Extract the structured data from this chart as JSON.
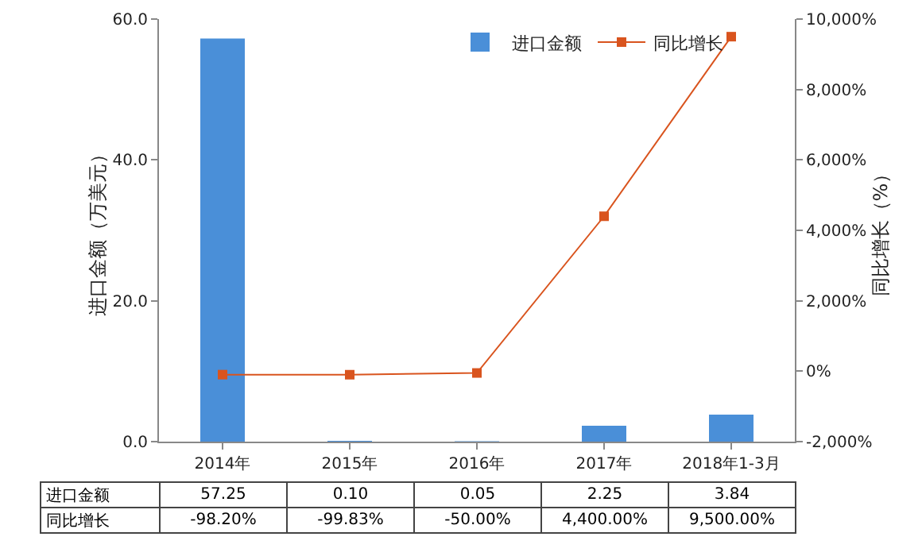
{
  "chart_data": {
    "type": "bar",
    "ylabel": "进口金额（万美元）",
    "y2label": "同比增长（%）",
    "categories": [
      "2014年",
      "2015年",
      "2016年",
      "2017年",
      "2018年1-3月"
    ],
    "series": [
      {
        "name": "进口金额",
        "color": "#4a8fd8",
        "values": [
          57.25,
          0.1,
          0.05,
          2.25,
          3.84
        ],
        "value_labels": [
          "57.25",
          "0.10",
          "0.05",
          "2.25",
          "3.84"
        ]
      },
      {
        "name": "同比增长",
        "type": "line",
        "axis": "y2",
        "color": "#d9541e",
        "values": [
          -98.2,
          -99.83,
          -50,
          4400,
          9500
        ],
        "value_labels": [
          "-98.20%",
          "-99.83%",
          "-50.00%",
          "4,400.00%",
          "9,500.00%"
        ]
      }
    ],
    "ylim": [
      0,
      60
    ],
    "yticks": [
      {
        "value": 0,
        "label": "0.0"
      },
      {
        "value": 20,
        "label": "20.0"
      },
      {
        "value": 40,
        "label": "40.0"
      },
      {
        "value": 60,
        "label": "60.0"
      }
    ],
    "y2lim": [
      -2000,
      10000
    ],
    "y2ticks": [
      {
        "value": -2000,
        "label": "-2,000%"
      },
      {
        "value": 0,
        "label": "0%"
      },
      {
        "value": 2000,
        "label": "2,000%"
      },
      {
        "value": 4000,
        "label": "4,000%"
      },
      {
        "value": 6000,
        "label": "6,000%"
      },
      {
        "value": 8000,
        "label": "8,000%"
      },
      {
        "value": 10000,
        "label": "10,000%"
      }
    ],
    "marker": "square",
    "line_style": "solid",
    "legend": "top right",
    "grid": false,
    "data_labels": true
  }
}
